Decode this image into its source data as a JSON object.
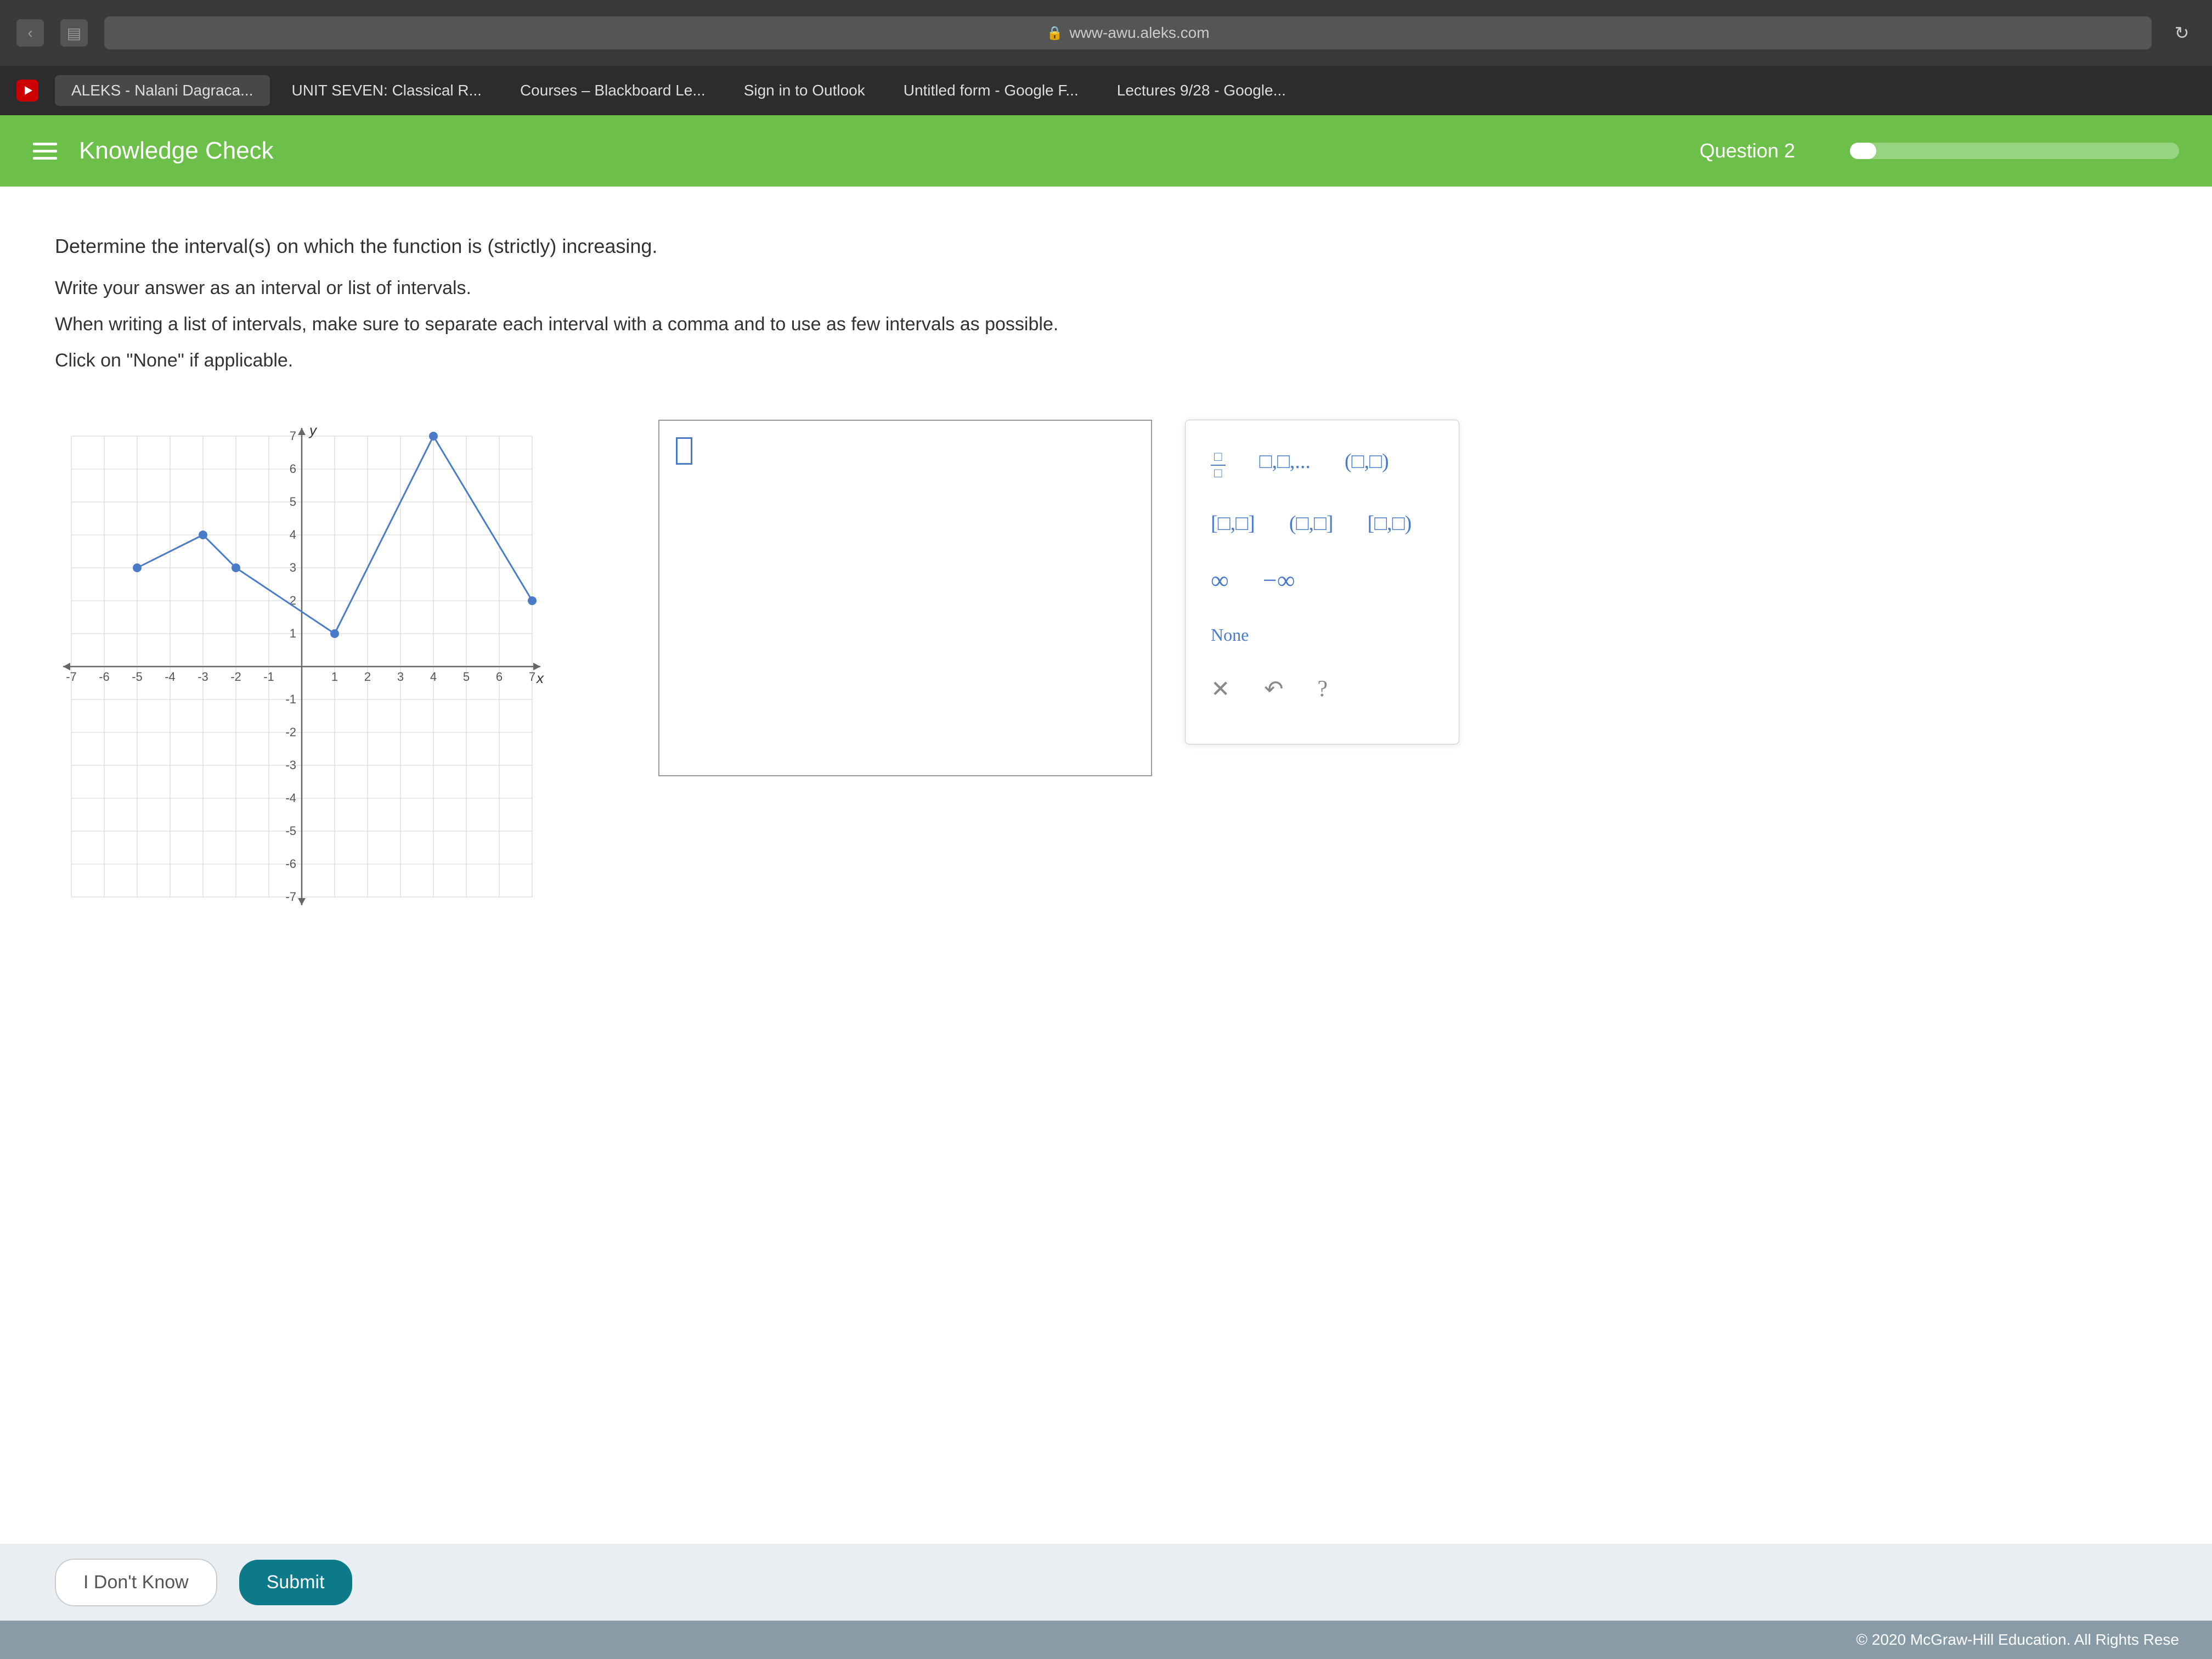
{
  "browser": {
    "url": "www-awu.aleks.com",
    "bookmarks": [
      "ALEKS - Nalani Dagraca...",
      "UNIT SEVEN: Classical R...",
      "Courses – Blackboard Le...",
      "Sign in to Outlook",
      "Untitled form - Google F...",
      "Lectures 9/28 - Google..."
    ]
  },
  "header": {
    "title": "Knowledge Check",
    "question_label": "Question 2",
    "progress_percent": 8,
    "bg_color": "#6cc04a"
  },
  "question": {
    "line1": "Determine the interval(s) on which the function is (strictly) increasing.",
    "line2": "Write your answer as an interval or list of intervals.",
    "line3": "When writing a list of intervals, make sure to separate each interval with a comma and to use as few intervals as possible.",
    "line4": "Click on \"None\" if applicable."
  },
  "graph": {
    "xlim": [
      -7,
      7
    ],
    "ylim": [
      -7,
      7
    ],
    "grid_color": "#d0d0d0",
    "axis_color": "#666",
    "line_color": "#4a7bc8",
    "point_color": "#4a7bc8",
    "xticks": [
      -7,
      -6,
      -5,
      -4,
      -3,
      -2,
      -1,
      1,
      2,
      3,
      4,
      5,
      6,
      7
    ],
    "yticks": [
      -7,
      -6,
      -5,
      -4,
      -3,
      -2,
      -1,
      1,
      2,
      3,
      4,
      5,
      6,
      7
    ],
    "tick_fontsize": 22,
    "points": [
      {
        "x": -5,
        "y": 3
      },
      {
        "x": -3,
        "y": 4
      },
      {
        "x": -2,
        "y": 3
      },
      {
        "x": 1,
        "y": 1
      },
      {
        "x": 4,
        "y": 7
      },
      {
        "x": 7,
        "y": 2
      }
    ]
  },
  "toolbox": {
    "none_label": "None",
    "btn_color": "#4a7bc8"
  },
  "buttons": {
    "dont_know": "I Don't Know",
    "submit": "Submit"
  },
  "footer": {
    "copyright": "© 2020 McGraw-Hill Education. All Rights Rese"
  }
}
